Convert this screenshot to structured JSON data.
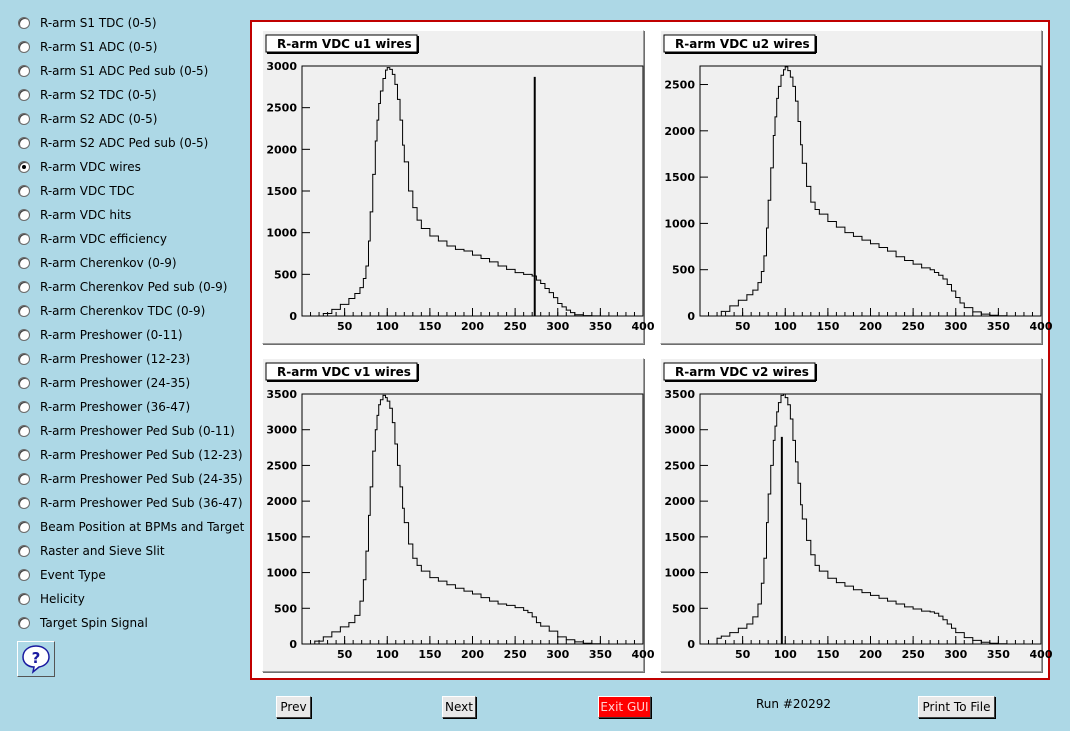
{
  "sidebar": {
    "items": [
      {
        "label": "R-arm S1 TDC (0-5)",
        "checked": false
      },
      {
        "label": "R-arm S1 ADC (0-5)",
        "checked": false
      },
      {
        "label": "R-arm S1 ADC Ped sub (0-5)",
        "checked": false
      },
      {
        "label": "R-arm S2 TDC (0-5)",
        "checked": false
      },
      {
        "label": "R-arm S2 ADC (0-5)",
        "checked": false
      },
      {
        "label": "R-arm S2 ADC Ped sub (0-5)",
        "checked": false
      },
      {
        "label": "R-arm VDC wires",
        "checked": true
      },
      {
        "label": "R-arm VDC TDC",
        "checked": false
      },
      {
        "label": "R-arm VDC hits",
        "checked": false
      },
      {
        "label": "R-arm VDC efficiency",
        "checked": false
      },
      {
        "label": "R-arm Cherenkov (0-9)",
        "checked": false
      },
      {
        "label": "R-arm Cherenkov Ped sub (0-9)",
        "checked": false
      },
      {
        "label": "R-arm Cherenkov TDC (0-9)",
        "checked": false
      },
      {
        "label": "R-arm Preshower (0-11)",
        "checked": false
      },
      {
        "label": "R-arm Preshower (12-23)",
        "checked": false
      },
      {
        "label": "R-arm Preshower (24-35)",
        "checked": false
      },
      {
        "label": "R-arm Preshower (36-47)",
        "checked": false
      },
      {
        "label": "R-arm Preshower Ped Sub (0-11)",
        "checked": false
      },
      {
        "label": "R-arm Preshower Ped Sub (12-23)",
        "checked": false
      },
      {
        "label": "R-arm Preshower Ped Sub (24-35)",
        "checked": false
      },
      {
        "label": "R-arm Preshower Ped Sub (36-47)",
        "checked": false
      },
      {
        "label": "Beam Position at BPMs and Target",
        "checked": false
      },
      {
        "label": "Raster and Sieve Slit",
        "checked": false
      },
      {
        "label": "Event Type",
        "checked": false
      },
      {
        "label": "Helicity",
        "checked": false
      },
      {
        "label": "Target Spin Signal",
        "checked": false
      }
    ],
    "help_icon": "question-mark-icon"
  },
  "footer": {
    "prev_label": "Prev",
    "next_label": "Next",
    "exit_label": "Exit GUI",
    "run_label": "Run #20292",
    "print_label": "Print To File"
  },
  "colors": {
    "background": "#add8e6",
    "frame": "#c00000",
    "exit": "#ff0000",
    "pad": "#f0f0f0"
  },
  "chart_data": [
    {
      "type": "line",
      "title": "R-arm VDC u1 wires",
      "xlim": [
        0,
        400
      ],
      "ylim": [
        0,
        3000
      ],
      "xticks": [
        50,
        100,
        150,
        200,
        250,
        300,
        350,
        400
      ],
      "yticks": [
        0,
        500,
        1000,
        1500,
        2000,
        2500,
        3000
      ],
      "x": [
        15,
        25,
        35,
        45,
        55,
        62,
        68,
        72,
        75,
        78,
        80,
        83,
        86,
        88,
        90,
        92,
        95,
        98,
        100,
        103,
        106,
        109,
        112,
        115,
        118,
        120,
        125,
        130,
        135,
        140,
        150,
        160,
        170,
        180,
        190,
        200,
        210,
        220,
        230,
        240,
        250,
        260,
        270,
        275,
        280,
        285,
        290,
        295,
        300,
        305,
        310,
        315,
        320,
        330,
        340,
        350
      ],
      "values": [
        0,
        30,
        80,
        140,
        210,
        270,
        340,
        450,
        600,
        900,
        1250,
        1700,
        2100,
        2350,
        2550,
        2700,
        2850,
        2950,
        2980,
        2960,
        2900,
        2780,
        2600,
        2350,
        2050,
        1850,
        1500,
        1300,
        1150,
        1050,
        960,
        900,
        840,
        800,
        780,
        730,
        690,
        650,
        600,
        560,
        520,
        500,
        480,
        430,
        390,
        330,
        280,
        220,
        150,
        110,
        70,
        40,
        15,
        5,
        2,
        0
      ],
      "spike": {
        "x": 273,
        "value": 2870
      }
    },
    {
      "type": "line",
      "title": "R-arm VDC u2 wires",
      "xlim": [
        0,
        400
      ],
      "ylim": [
        0,
        2700
      ],
      "xticks": [
        50,
        100,
        150,
        200,
        250,
        300,
        350,
        400
      ],
      "yticks": [
        0,
        500,
        1000,
        1500,
        2000,
        2500
      ],
      "x": [
        15,
        25,
        35,
        45,
        55,
        62,
        68,
        72,
        75,
        78,
        80,
        83,
        86,
        88,
        90,
        92,
        95,
        98,
        100,
        103,
        106,
        109,
        112,
        115,
        118,
        120,
        125,
        130,
        135,
        140,
        150,
        160,
        170,
        180,
        190,
        200,
        210,
        220,
        230,
        240,
        250,
        260,
        270,
        275,
        280,
        285,
        290,
        295,
        300,
        305,
        310,
        320,
        330,
        340,
        350,
        360
      ],
      "values": [
        0,
        50,
        110,
        170,
        230,
        280,
        360,
        480,
        650,
        950,
        1250,
        1600,
        1950,
        2150,
        2350,
        2480,
        2600,
        2660,
        2690,
        2650,
        2580,
        2480,
        2320,
        2100,
        1850,
        1650,
        1400,
        1230,
        1150,
        1100,
        1020,
        960,
        900,
        860,
        820,
        780,
        740,
        700,
        640,
        600,
        560,
        520,
        500,
        470,
        440,
        400,
        340,
        270,
        200,
        140,
        90,
        45,
        20,
        8,
        3,
        0
      ]
    },
    {
      "type": "line",
      "title": "R-arm VDC v1 wires",
      "xlim": [
        0,
        400
      ],
      "ylim": [
        0,
        3500
      ],
      "xticks": [
        50,
        100,
        150,
        200,
        250,
        300,
        350,
        400
      ],
      "yticks": [
        0,
        500,
        1000,
        1500,
        2000,
        2500,
        3000,
        3500
      ],
      "x": [
        5,
        15,
        25,
        35,
        45,
        55,
        62,
        68,
        72,
        75,
        78,
        80,
        83,
        86,
        88,
        90,
        92,
        95,
        98,
        100,
        103,
        106,
        109,
        112,
        115,
        118,
        120,
        125,
        130,
        135,
        140,
        150,
        160,
        170,
        180,
        190,
        200,
        210,
        220,
        230,
        240,
        250,
        260,
        265,
        270,
        275,
        280,
        290,
        300,
        310,
        320,
        330,
        340,
        350
      ],
      "values": [
        0,
        40,
        100,
        170,
        240,
        300,
        400,
        600,
        900,
        1300,
        1800,
        2200,
        2700,
        3000,
        3200,
        3350,
        3420,
        3480,
        3450,
        3400,
        3300,
        3100,
        2800,
        2500,
        2200,
        1900,
        1700,
        1400,
        1200,
        1100,
        1020,
        930,
        880,
        830,
        780,
        740,
        700,
        650,
        600,
        560,
        540,
        510,
        470,
        440,
        380,
        300,
        250,
        180,
        100,
        60,
        30,
        10,
        3,
        0
      ]
    },
    {
      "type": "line",
      "title": "R-arm VDC v2 wires",
      "xlim": [
        0,
        400
      ],
      "ylim": [
        0,
        3500
      ],
      "xticks": [
        50,
        100,
        150,
        200,
        250,
        300,
        350,
        400
      ],
      "yticks": [
        0,
        500,
        1000,
        1500,
        2000,
        2500,
        3000,
        3500
      ],
      "x": [
        15,
        20,
        25,
        35,
        45,
        55,
        62,
        68,
        72,
        75,
        78,
        80,
        83,
        86,
        88,
        90,
        92,
        95,
        98,
        100,
        103,
        106,
        109,
        112,
        115,
        118,
        120,
        125,
        130,
        135,
        140,
        150,
        160,
        170,
        180,
        190,
        200,
        210,
        220,
        230,
        240,
        250,
        260,
        270,
        275,
        280,
        285,
        290,
        295,
        300,
        310,
        320,
        330,
        340,
        350,
        360
      ],
      "values": [
        0,
        80,
        110,
        160,
        220,
        280,
        380,
        560,
        850,
        1200,
        1700,
        2100,
        2500,
        2850,
        3050,
        3250,
        3380,
        3480,
        3500,
        3450,
        3350,
        3150,
        2850,
        2550,
        2250,
        1950,
        1750,
        1450,
        1250,
        1100,
        1020,
        920,
        860,
        810,
        760,
        720,
        680,
        640,
        600,
        560,
        520,
        490,
        460,
        450,
        430,
        390,
        340,
        280,
        220,
        160,
        90,
        50,
        25,
        10,
        3,
        0
      ],
      "spike": {
        "x": 96,
        "value": 2900
      }
    }
  ]
}
